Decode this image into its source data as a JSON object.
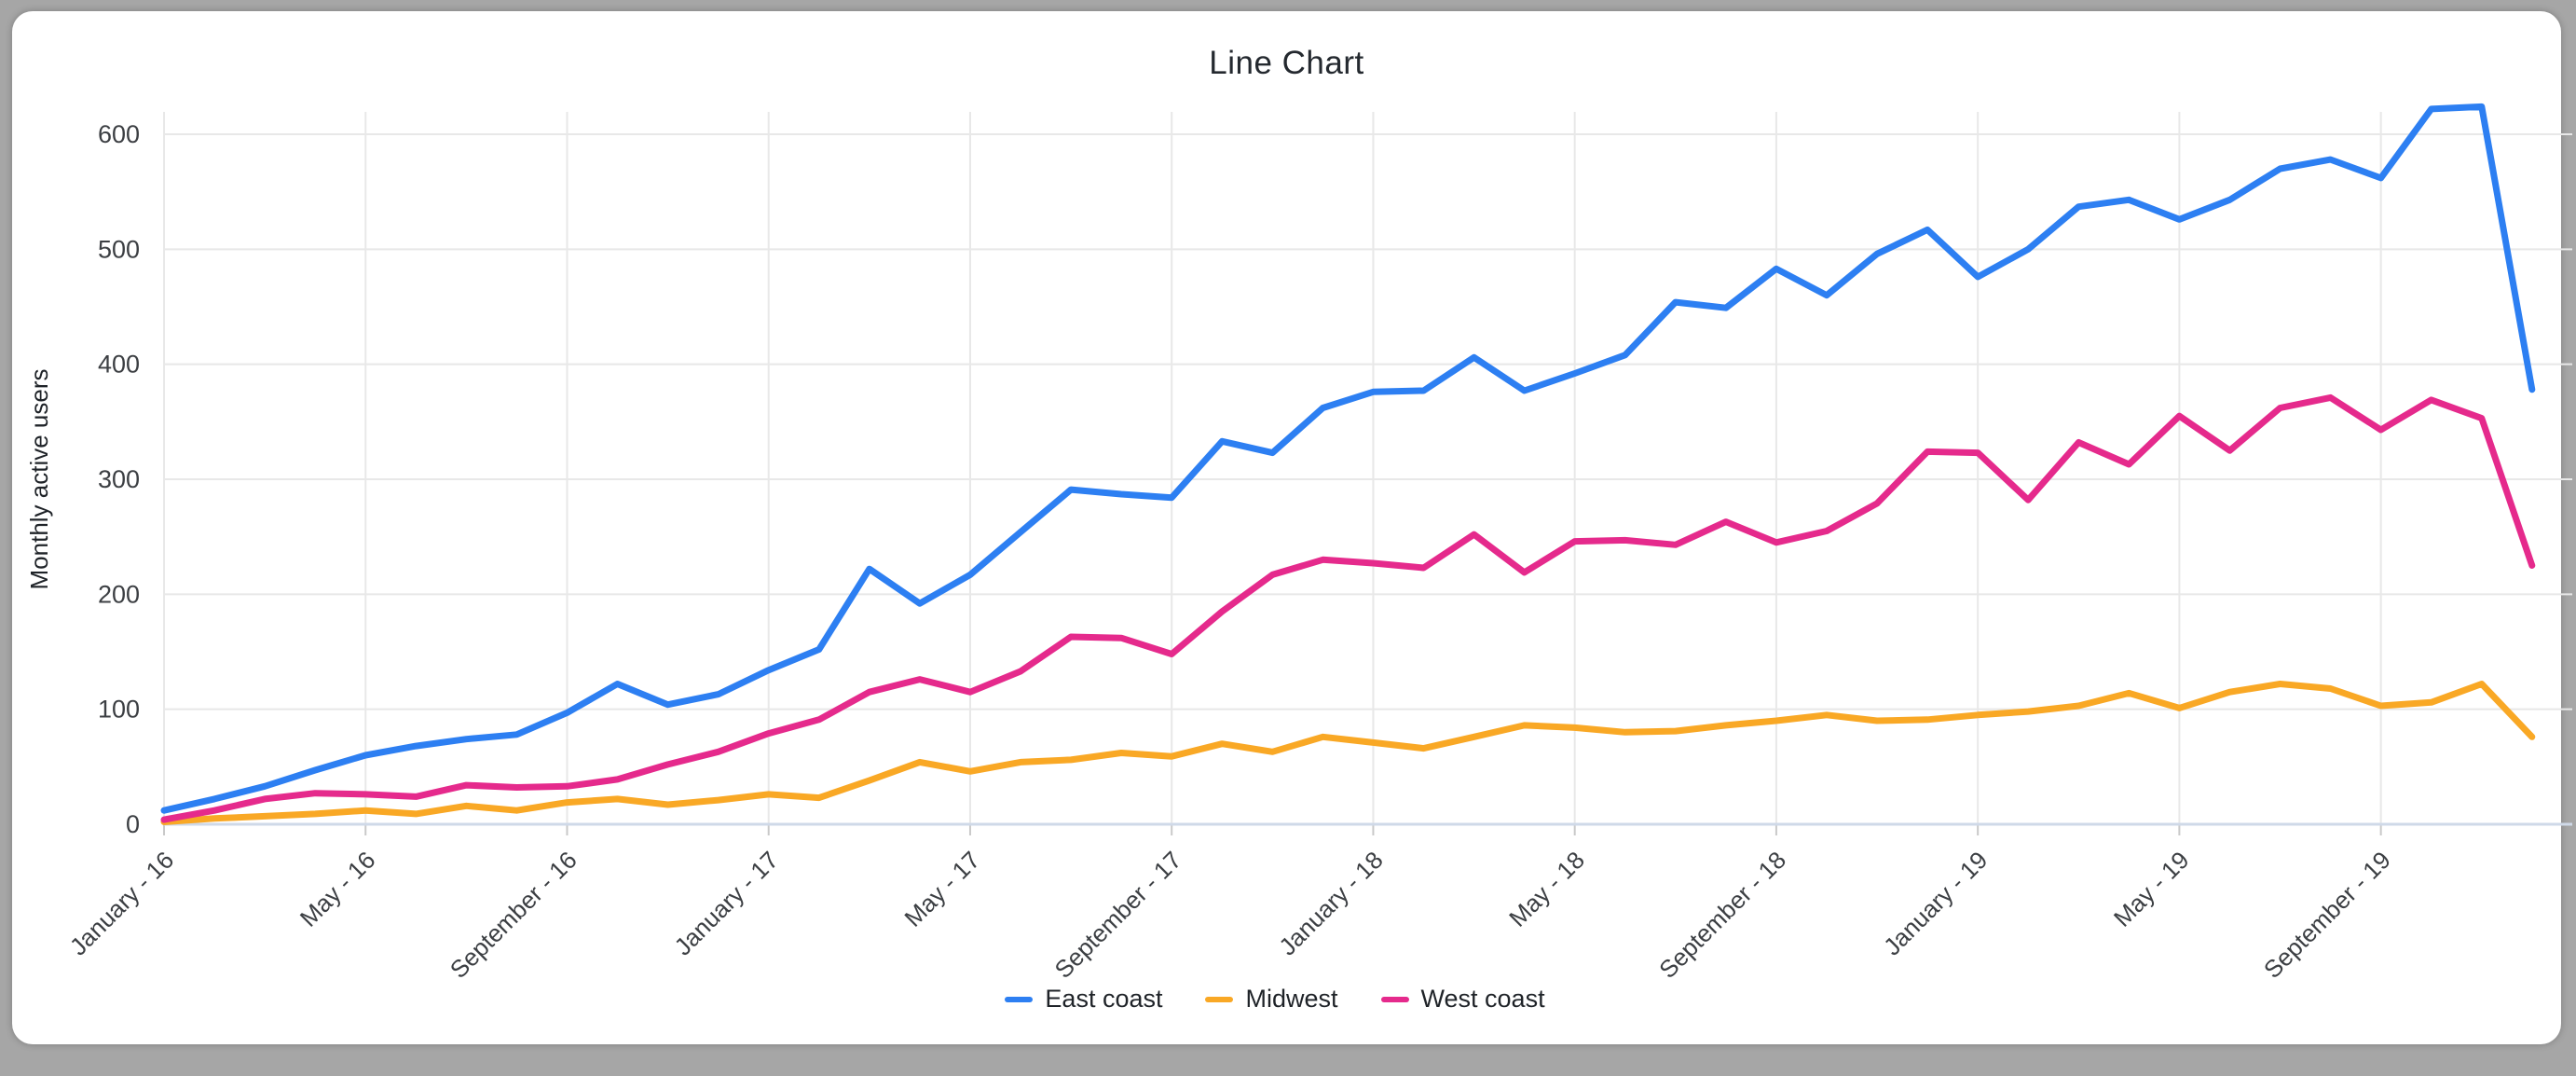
{
  "chart_data": {
    "type": "line",
    "title": "Line Chart",
    "xlabel": "",
    "ylabel": "Monthly active users",
    "ylim": [
      0,
      600
    ],
    "y_ticks": [
      0,
      100,
      200,
      300,
      400,
      500,
      600
    ],
    "n_points": 48,
    "x_tick_every": 4,
    "x_tick_labels": [
      "January - 16",
      "May - 16",
      "September - 16",
      "January - 17",
      "May - 17",
      "September - 17",
      "January - 18",
      "May - 18",
      "September - 18",
      "January - 19",
      "May - 19",
      "September - 19"
    ],
    "grid": true,
    "legend_position": "bottom",
    "series": [
      {
        "name": "East coast",
        "color": "#2d7ff2",
        "values": [
          12,
          22,
          33,
          47,
          60,
          68,
          74,
          78,
          97,
          122,
          104,
          113,
          134,
          152,
          222,
          192,
          217,
          254,
          291,
          287,
          284,
          333,
          323,
          362,
          376,
          377,
          406,
          377,
          392,
          408,
          454,
          449,
          483,
          460,
          496,
          517,
          476,
          500,
          537,
          543,
          526,
          543,
          570,
          578,
          562,
          622,
          624,
          378
        ]
      },
      {
        "name": "Midwest",
        "color": "#f9a825",
        "values": [
          2,
          5,
          7,
          9,
          12,
          9,
          16,
          12,
          19,
          22,
          17,
          21,
          26,
          23,
          38,
          54,
          46,
          54,
          56,
          62,
          59,
          70,
          63,
          76,
          71,
          66,
          76,
          86,
          84,
          80,
          81,
          86,
          90,
          95,
          90,
          91,
          95,
          98,
          103,
          114,
          101,
          115,
          122,
          118,
          103,
          106,
          122,
          76
        ]
      },
      {
        "name": "West coast",
        "color": "#e52a8c",
        "values": [
          4,
          12,
          22,
          27,
          26,
          24,
          34,
          32,
          33,
          39,
          52,
          63,
          79,
          91,
          115,
          126,
          115,
          133,
          163,
          162,
          148,
          185,
          217,
          230,
          227,
          223,
          252,
          219,
          246,
          247,
          243,
          263,
          245,
          255,
          279,
          324,
          323,
          282,
          332,
          313,
          355,
          325,
          362,
          371,
          343,
          369,
          353,
          225
        ]
      }
    ],
    "style": {
      "gridline_color": "#e8e8e8",
      "axis_line_color": "#cfd9e8",
      "tick_text_color": "#3c3f43",
      "axis_title_color": "#1f2328",
      "frame_color": "#a6a6a6",
      "background_color": "#ffffff"
    }
  }
}
